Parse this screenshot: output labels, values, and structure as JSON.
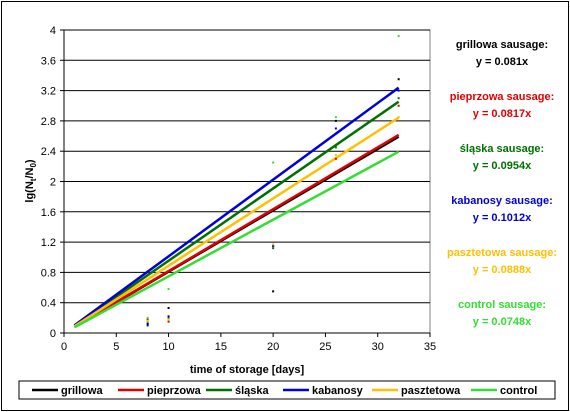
{
  "chart_data": {
    "type": "scatter",
    "xlabel": "time of storage [days]",
    "ylabel": "lg(Nt/N0)",
    "ylabel_parts": {
      "lg": "lg(N",
      "sub1": "t",
      "mid": "/N",
      "sub2": "0",
      "end": ")"
    },
    "xlim": [
      0,
      35
    ],
    "ylim": [
      0,
      4
    ],
    "xticks": [
      "0",
      "5",
      "10",
      "15",
      "20",
      "25",
      "30",
      "35"
    ],
    "yticks": [
      "0",
      "0.4",
      "0.8",
      "1.2",
      "1.6",
      "2",
      "2.4",
      "2.8",
      "3.2",
      "3.6",
      "4"
    ],
    "grid": "horizontal",
    "legend_position": "bottom",
    "series": [
      {
        "name": "grillowa",
        "color": "#000000",
        "slope": 0.081,
        "label": "grillowa sausage:",
        "equation": "y = 0.081x",
        "points": [
          [
            8,
            0.12
          ],
          [
            10,
            0.33
          ],
          [
            20,
            0.55
          ],
          [
            26,
            2.8
          ],
          [
            32,
            3.35
          ]
        ]
      },
      {
        "name": "pieprzowa",
        "color": "#e00000",
        "slope": 0.0817,
        "label": "pieprzowa sausage:",
        "equation": "y = 0.0817x",
        "points": [
          [
            8,
            0.18
          ],
          [
            10,
            0.15
          ],
          [
            20,
            1.15
          ],
          [
            26,
            2.3
          ],
          [
            32,
            3.0
          ]
        ]
      },
      {
        "name": "śląska",
        "color": "#007000",
        "slope": 0.0954,
        "label": "śląska sausage:",
        "equation": "y = 0.0954x",
        "points": [
          [
            8,
            0.15
          ],
          [
            10,
            0.2
          ],
          [
            20,
            1.12
          ],
          [
            26,
            2.45
          ],
          [
            32,
            3.1
          ]
        ]
      },
      {
        "name": "kabanosy",
        "color": "#0000dd",
        "slope": 0.1012,
        "label": "kabanosy sausage:",
        "equation": "y = 0.1012x",
        "points": [
          [
            8,
            0.1
          ],
          [
            10,
            0.22
          ],
          [
            20,
            1.15
          ],
          [
            26,
            2.7
          ],
          [
            32,
            3.2
          ]
        ]
      },
      {
        "name": "pasztetowa",
        "color": "#ffc000",
        "slope": 0.0888,
        "label": "pasztetowa sausage:",
        "equation": "y = 0.0888x",
        "points": [
          [
            8,
            0.16
          ],
          [
            10,
            0.18
          ],
          [
            20,
            1.17
          ],
          [
            26,
            2.35
          ],
          [
            32,
            2.85
          ]
        ]
      },
      {
        "name": "control",
        "color": "#33dd33",
        "slope": 0.0748,
        "label": "control sausage:",
        "equation": "y = 0.0748x",
        "points": [
          [
            8,
            0.2
          ],
          [
            10,
            0.58
          ],
          [
            20,
            2.25
          ],
          [
            26,
            2.85
          ],
          [
            32,
            3.92
          ]
        ]
      }
    ]
  }
}
